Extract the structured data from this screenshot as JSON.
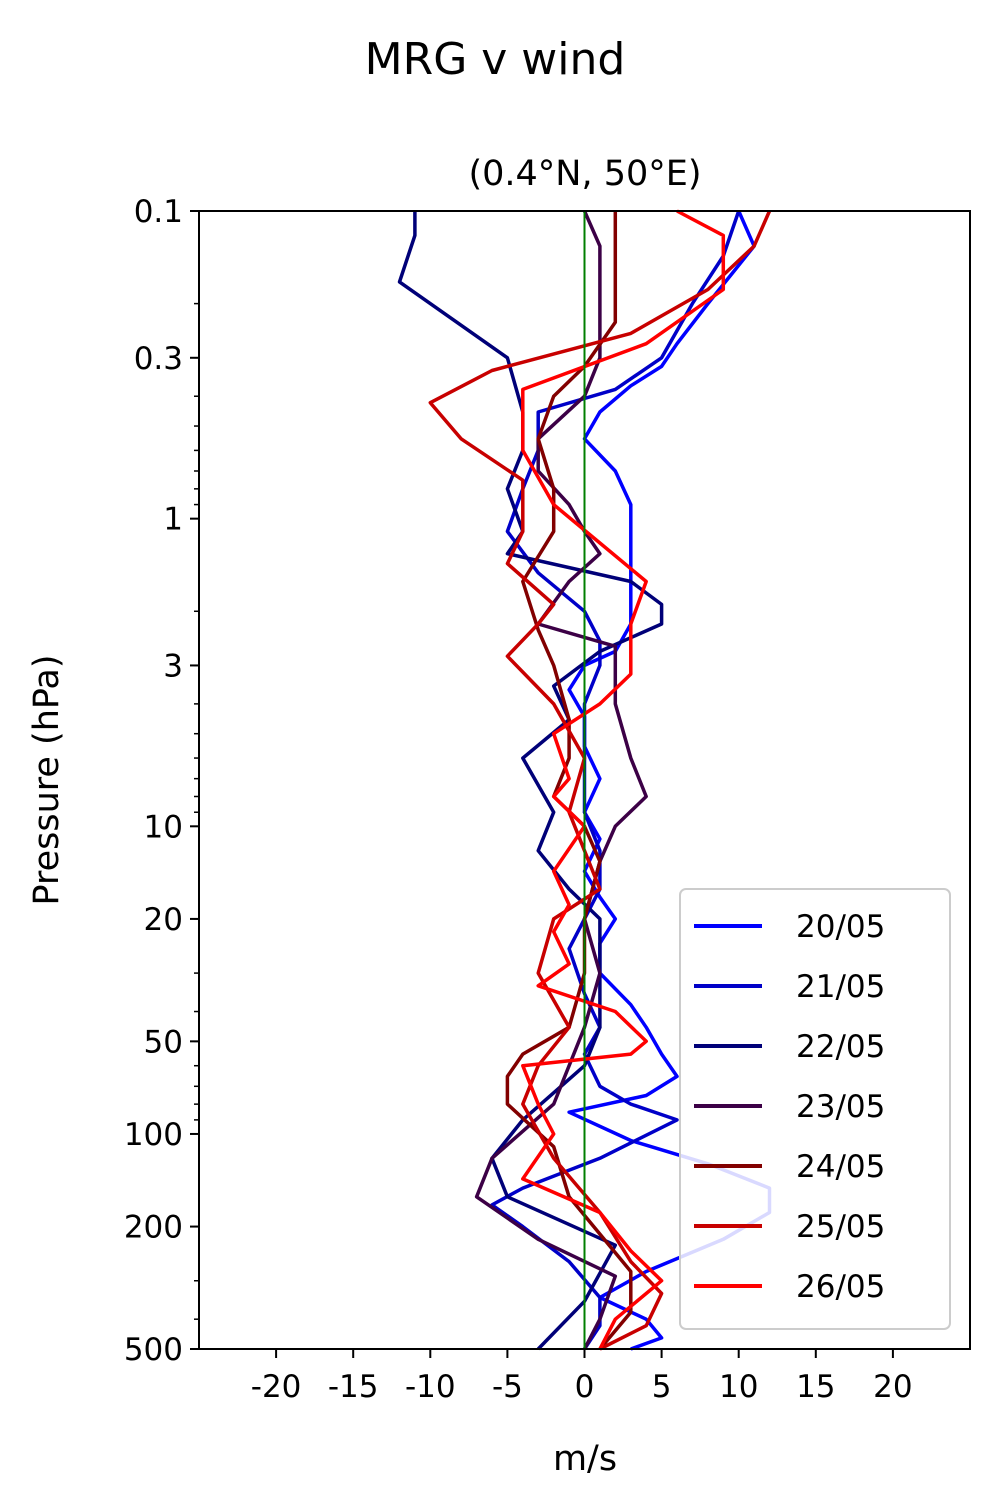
{
  "chart_data": {
    "type": "line",
    "title": "MRG v wind",
    "subtitle": "(0.4°N, 50°E)",
    "xlabel": "m/s",
    "ylabel": "Pressure (hPa)",
    "xlim": [
      -25,
      25
    ],
    "ylim": [
      500,
      0.1
    ],
    "yscale": "log",
    "x_ticks": [
      -20,
      -15,
      -10,
      -5,
      0,
      5,
      10,
      15,
      20
    ],
    "x_tick_labels": [
      "-20",
      "-15",
      "-10",
      "-5",
      "0",
      "5",
      "10",
      "15",
      "20"
    ],
    "y_ticks": [
      0.1,
      0.3,
      1,
      3,
      10,
      20,
      50,
      100,
      200,
      500
    ],
    "y_tick_labels": [
      "0.1",
      "0.3",
      "1",
      "3",
      "10",
      "20",
      "50",
      "100",
      "200",
      "500"
    ],
    "zero_line": {
      "x": 0,
      "color": "#007f00"
    },
    "legend_position": "lower right",
    "grid": false,
    "series": [
      {
        "name": "20/05",
        "color": "#0000ff",
        "x": [
          10,
          11,
          8,
          6,
          5,
          3,
          1,
          0,
          2,
          3,
          3,
          3,
          3,
          2,
          0,
          -1,
          0,
          0,
          1,
          0,
          1,
          0,
          1,
          2,
          1,
          1,
          3,
          4,
          5,
          6,
          4,
          -1,
          3,
          8,
          12,
          12,
          9,
          4,
          1,
          4,
          5,
          3
        ],
        "y": [
          0.1,
          0.13,
          0.2,
          0.27,
          0.32,
          0.37,
          0.45,
          0.55,
          0.7,
          0.9,
          1.2,
          1.7,
          2.2,
          2.7,
          3,
          3.6,
          4.4,
          5.5,
          7,
          9,
          11,
          14,
          17,
          20,
          24,
          30,
          38,
          45,
          55,
          65,
          75,
          85,
          105,
          125,
          150,
          180,
          220,
          280,
          340,
          400,
          460,
          500
        ]
      },
      {
        "name": "21/05",
        "color": "#0000c8",
        "x": [
          10,
          9,
          7,
          5,
          2,
          -3,
          -3,
          -4,
          -5,
          -3,
          0,
          1,
          1,
          0,
          0,
          0,
          1,
          1,
          0,
          -1,
          0,
          1,
          0,
          1,
          3,
          6,
          1,
          -4,
          -6,
          -4,
          -1,
          1,
          1,
          0
        ],
        "y": [
          0.1,
          0.14,
          0.2,
          0.3,
          0.38,
          0.45,
          0.6,
          0.8,
          1.1,
          1.5,
          2,
          2.5,
          3,
          4,
          6,
          9,
          12,
          16,
          20,
          25,
          35,
          45,
          55,
          70,
          80,
          90,
          120,
          150,
          170,
          200,
          260,
          340,
          420,
          500
        ]
      },
      {
        "name": "22/05",
        "color": "#000078",
        "x": [
          -11,
          -11,
          -12,
          -5,
          -4,
          -4,
          -5,
          -4,
          -5,
          3,
          5,
          5,
          1,
          -2,
          -1,
          -4,
          -2,
          -3,
          -1,
          1,
          1,
          1,
          0,
          -4,
          -6,
          -5,
          2,
          0,
          -3
        ],
        "y": [
          0.1,
          0.12,
          0.17,
          0.3,
          0.45,
          0.6,
          0.8,
          1.1,
          1.3,
          1.6,
          1.9,
          2.2,
          2.7,
          3.5,
          4.5,
          6,
          9,
          12,
          16,
          20,
          30,
          45,
          60,
          90,
          120,
          160,
          230,
          350,
          500
        ]
      },
      {
        "name": "23/05",
        "color": "#3c0046",
        "x": [
          0,
          1,
          1,
          1,
          0,
          -3,
          -3,
          -1,
          0,
          1,
          -1,
          -3,
          2,
          2,
          3,
          4,
          2,
          1,
          0,
          1,
          0,
          -2,
          -6,
          -7,
          -3,
          2,
          1,
          0
        ],
        "y": [
          0.1,
          0.13,
          0.2,
          0.3,
          0.4,
          0.55,
          0.7,
          0.9,
          1.1,
          1.3,
          1.6,
          2.2,
          2.6,
          4,
          6,
          8,
          10,
          13,
          20,
          30,
          45,
          80,
          120,
          160,
          220,
          290,
          400,
          500
        ]
      },
      {
        "name": "24/05",
        "color": "#820000",
        "x": [
          2,
          2,
          2,
          0,
          -2,
          -3,
          -2,
          -2,
          -4,
          -3,
          -2,
          -1,
          -1,
          -2,
          0,
          1,
          0,
          0,
          -1,
          -4,
          -5,
          -5,
          -2,
          -1,
          3,
          3,
          1
        ],
        "y": [
          0.1,
          0.15,
          0.23,
          0.32,
          0.4,
          0.55,
          0.8,
          1.1,
          1.6,
          2.3,
          3,
          4.5,
          6,
          8,
          10,
          13,
          20,
          30,
          45,
          55,
          65,
          80,
          110,
          160,
          280,
          380,
          500
        ]
      },
      {
        "name": "25/05",
        "color": "#c80000",
        "x": [
          12,
          11,
          8,
          3,
          -6,
          -10,
          -8,
          -4,
          -4,
          -5,
          -2,
          -3,
          -5,
          -2,
          0,
          -1,
          0,
          1,
          -2,
          -3,
          -1,
          -3,
          -4,
          -2,
          1,
          3,
          5,
          4,
          1
        ],
        "y": [
          0.1,
          0.13,
          0.18,
          0.25,
          0.33,
          0.42,
          0.55,
          0.75,
          1.1,
          1.4,
          1.9,
          2.2,
          2.8,
          4,
          6,
          9,
          12,
          16,
          20,
          30,
          45,
          60,
          80,
          120,
          180,
          260,
          330,
          420,
          500
        ]
      },
      {
        "name": "26/05",
        "color": "#ff0000",
        "x": [
          6,
          9,
          9,
          4,
          -4,
          -4,
          -2,
          1,
          4,
          3,
          3,
          1,
          -2,
          -1,
          -2,
          0,
          -2,
          -1,
          -2,
          -1,
          -3,
          2,
          4,
          3,
          -4,
          -3,
          -2,
          -4,
          1,
          3,
          5,
          2,
          1
        ],
        "y": [
          0.1,
          0.12,
          0.18,
          0.27,
          0.38,
          0.6,
          0.9,
          1.2,
          1.6,
          2.2,
          3.2,
          4,
          5,
          7,
          8,
          10,
          14,
          18,
          22,
          28,
          33,
          40,
          50,
          55,
          60,
          80,
          100,
          140,
          180,
          240,
          300,
          400,
          500
        ]
      }
    ]
  }
}
